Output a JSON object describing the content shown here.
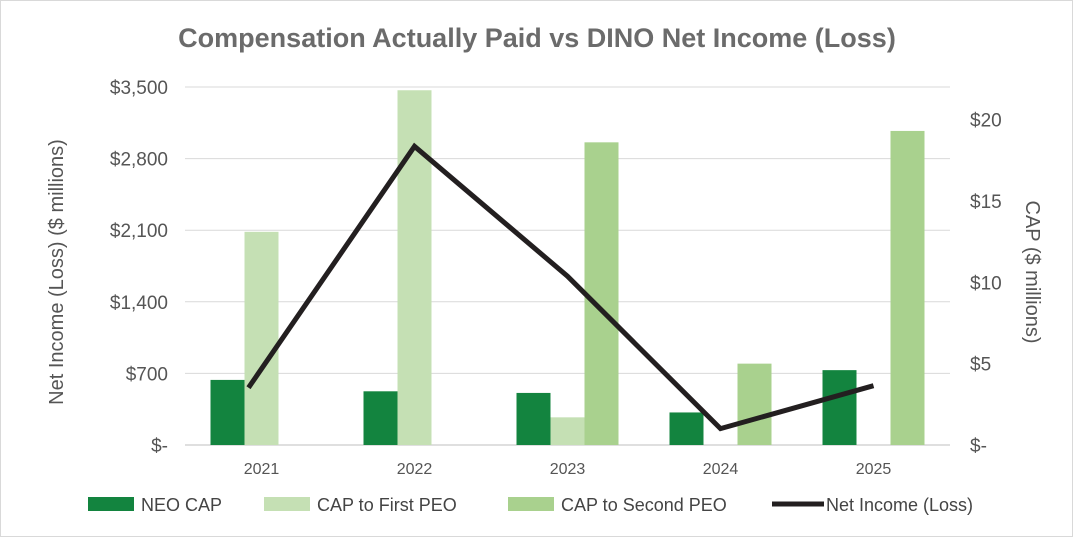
{
  "chart_data": {
    "type": "bar",
    "title": "Compensation Actually Paid vs DINO Net Income (Loss)",
    "categories": [
      "2021",
      "2022",
      "2023",
      "2024",
      "2025"
    ],
    "y_left": {
      "label": "Net Income (Loss) ($ millions)",
      "ylim": [
        0,
        3500
      ],
      "ticks": [
        0,
        700,
        1400,
        2100,
        2800,
        3500
      ],
      "tick_labels": [
        "$-",
        "$700",
        "$1,400",
        "$2,100",
        "$2,800",
        "$3,500"
      ]
    },
    "y_right": {
      "label": "CAP ($ millions)",
      "ylim": [
        0,
        22
      ],
      "ticks": [
        0,
        5,
        10,
        15,
        20
      ],
      "tick_labels": [
        "$-",
        "$5",
        "$10",
        "$15",
        "$20"
      ]
    },
    "series": [
      {
        "name": "NEO CAP",
        "type": "bar",
        "axis": "right",
        "color": "#13843f",
        "values": [
          4.0,
          3.3,
          3.2,
          2.0,
          4.6
        ]
      },
      {
        "name": "CAP to First PEO",
        "type": "bar",
        "axis": "right",
        "color": "#c5e0b4",
        "values": [
          13.1,
          21.8,
          1.7,
          null,
          null
        ]
      },
      {
        "name": "CAP to Second PEO",
        "type": "bar",
        "axis": "right",
        "color": "#a9d18e",
        "values": [
          null,
          null,
          18.6,
          5.0,
          19.3
        ]
      },
      {
        "name": "Net Income (Loss)",
        "type": "line",
        "axis": "left",
        "color": "#231f20",
        "values": [
          560,
          2920,
          1650,
          160,
          580
        ]
      }
    ],
    "grid": true,
    "legend_position": "bottom"
  }
}
